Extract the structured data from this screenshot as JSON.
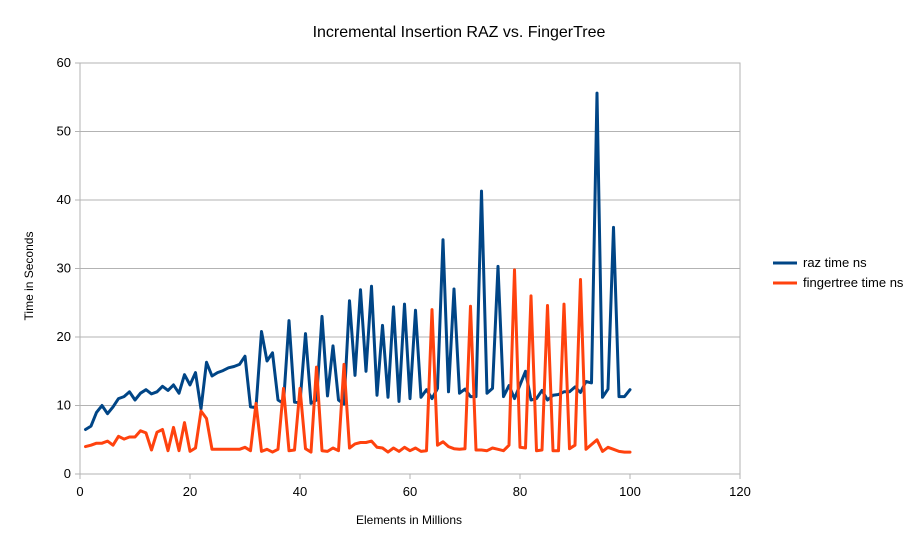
{
  "chart_data": {
    "type": "line",
    "title": "Incremental Insertion RAZ vs. FingerTree",
    "xlabel": "Elements in Millions",
    "ylabel": "Time in Seconds",
    "xlim": [
      0,
      120
    ],
    "ylim": [
      0,
      60
    ],
    "xticks": [
      0,
      20,
      40,
      60,
      80,
      100,
      120
    ],
    "yticks": [
      0,
      10,
      20,
      30,
      40,
      50,
      60
    ],
    "grid": "horizontal",
    "legend_position": "right",
    "series": [
      {
        "name": "raz time ns",
        "color": "#004586",
        "x": [
          1,
          2,
          3,
          4,
          5,
          6,
          7,
          8,
          9,
          10,
          11,
          12,
          13,
          14,
          15,
          16,
          17,
          18,
          19,
          20,
          21,
          22,
          23,
          24,
          25,
          26,
          27,
          28,
          29,
          30,
          31,
          32,
          33,
          34,
          35,
          36,
          37,
          38,
          39,
          40,
          41,
          42,
          43,
          44,
          45,
          46,
          47,
          48,
          49,
          50,
          51,
          52,
          53,
          54,
          55,
          56,
          57,
          58,
          59,
          60,
          61,
          62,
          63,
          64,
          65,
          66,
          67,
          68,
          69,
          70,
          71,
          72,
          73,
          74,
          75,
          76,
          77,
          78,
          79,
          80,
          81,
          82,
          83,
          84,
          85,
          86,
          87,
          88,
          89,
          90,
          91,
          92,
          93,
          94,
          95,
          96,
          97,
          98,
          99,
          100
        ],
        "y": [
          6.5,
          7,
          9,
          10,
          8.8,
          9.8,
          11,
          11.3,
          12,
          10.8,
          11.8,
          12.3,
          11.7,
          12,
          12.8,
          12.2,
          13,
          11.8,
          14.5,
          13,
          14.8,
          9.5,
          16.3,
          14.3,
          14.8,
          15.1,
          15.5,
          15.7,
          16,
          17.2,
          9.8,
          9.7,
          20.8,
          16.5,
          17.7,
          10.8,
          10.3,
          22.4,
          10.5,
          10.4,
          20.5,
          10.3,
          10.8,
          23,
          11.4,
          18.7,
          10.8,
          10.2,
          25.3,
          14.4,
          26.9,
          15,
          27.4,
          11.5,
          21.7,
          11.2,
          24.4,
          10.6,
          24.8,
          11,
          23.9,
          11.2,
          12.3,
          11,
          12.5,
          34.2,
          12,
          27,
          11.8,
          12.4,
          11.3,
          11.3,
          41.3,
          11.8,
          12.5,
          30.3,
          11.3,
          12.9,
          11,
          13,
          15,
          10.8,
          11,
          12.2,
          10.8,
          11.5,
          11.6,
          12,
          12,
          12.7,
          11.9,
          13.5,
          13.3,
          55.6,
          11.2,
          12.4,
          36,
          11.3,
          11.3,
          12.3
        ]
      },
      {
        "name": "fingertree time ns",
        "color": "#ff420e",
        "x": [
          1,
          2,
          3,
          4,
          5,
          6,
          7,
          8,
          9,
          10,
          11,
          12,
          13,
          14,
          15,
          16,
          17,
          18,
          19,
          20,
          21,
          22,
          23,
          24,
          25,
          26,
          27,
          28,
          29,
          30,
          31,
          32,
          33,
          34,
          35,
          36,
          37,
          38,
          39,
          40,
          41,
          42,
          43,
          44,
          45,
          46,
          47,
          48,
          49,
          50,
          51,
          52,
          53,
          54,
          55,
          56,
          57,
          58,
          59,
          60,
          61,
          62,
          63,
          64,
          65,
          66,
          67,
          68,
          69,
          70,
          71,
          72,
          73,
          74,
          75,
          76,
          77,
          78,
          79,
          80,
          81,
          82,
          83,
          84,
          85,
          86,
          87,
          88,
          89,
          90,
          91,
          92,
          93,
          94,
          95,
          96,
          97,
          98,
          99,
          100
        ],
        "y": [
          4,
          4.2,
          4.5,
          4.5,
          4.8,
          4.2,
          5.5,
          5.1,
          5.4,
          5.4,
          6.3,
          6,
          3.5,
          6.1,
          6.5,
          3.4,
          6.8,
          3.4,
          7.5,
          3.3,
          3.8,
          9.2,
          8.1,
          3.6,
          3.6,
          3.6,
          3.6,
          3.6,
          3.6,
          3.9,
          3.4,
          10.3,
          3.3,
          3.6,
          3.2,
          3.6,
          12.5,
          3.4,
          3.5,
          12.5,
          3.7,
          3.2,
          15.6,
          3.4,
          3.3,
          3.8,
          3.4,
          16,
          3.8,
          4.4,
          4.6,
          4.6,
          4.8,
          3.9,
          3.8,
          3.2,
          3.8,
          3.3,
          3.9,
          3.4,
          3.8,
          3.3,
          3.4,
          24,
          4.2,
          4.7,
          4,
          3.7,
          3.6,
          3.7,
          24.5,
          3.5,
          3.5,
          3.4,
          3.8,
          3.6,
          3.4,
          4.2,
          29.8,
          3.9,
          3.8,
          26,
          3.4,
          3.5,
          24.6,
          3.4,
          3.4,
          24.8,
          3.7,
          4.2,
          28.4,
          3.6,
          4.3,
          5,
          3.3,
          3.9,
          3.6,
          3.3,
          3.2,
          3.2
        ]
      }
    ]
  }
}
